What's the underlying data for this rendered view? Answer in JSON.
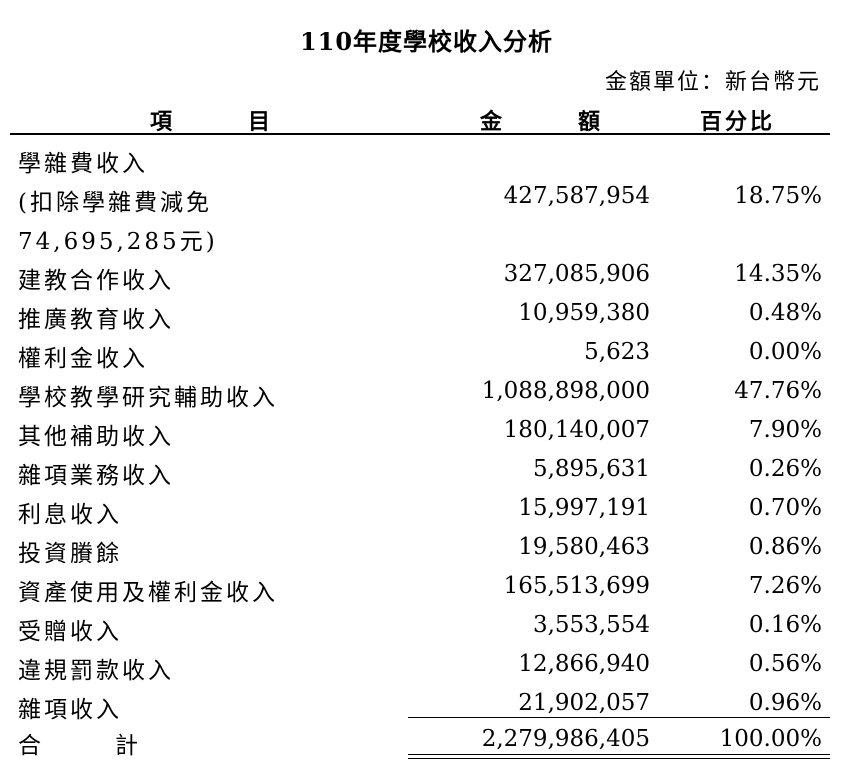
{
  "title": "110年度學校收入分析",
  "unit": "金額單位：新台幣元",
  "headers": {
    "item_chars": [
      "項",
      "目"
    ],
    "amount_chars": [
      "金",
      "額"
    ],
    "percent": "百分比"
  },
  "rows": [
    {
      "item_lines": [
        "學雜費收入",
        "(扣除學雜費減免",
        "74,695,285元)"
      ],
      "amount": "427,587,954",
      "percent": "18.75%"
    },
    {
      "item": "建教合作收入",
      "amount": "327,085,906",
      "percent": "14.35%"
    },
    {
      "item": "推廣教育收入",
      "amount": "10,959,380",
      "percent": "0.48%"
    },
    {
      "item": "權利金收入",
      "amount": "5,623",
      "percent": "0.00%"
    },
    {
      "item": "學校教學研究輔助收入",
      "amount": "1,088,898,000",
      "percent": "47.76%"
    },
    {
      "item": "其他補助收入",
      "amount": "180,140,007",
      "percent": "7.90%"
    },
    {
      "item": "雜項業務收入",
      "amount": "5,895,631",
      "percent": "0.26%"
    },
    {
      "item": "利息收入",
      "amount": "15,997,191",
      "percent": "0.70%"
    },
    {
      "item": "投資賸餘",
      "amount": "19,580,463",
      "percent": "0.86%"
    },
    {
      "item": "資產使用及權利金收入",
      "amount": "165,513,699",
      "percent": "7.26%"
    },
    {
      "item": "受贈收入",
      "amount": "3,553,554",
      "percent": "0.16%"
    },
    {
      "item": "違規罰款收入",
      "amount": "12,866,940",
      "percent": "0.56%"
    },
    {
      "item": "雜項收入",
      "amount": "21,902,057",
      "percent": "0.96%"
    }
  ],
  "total": {
    "label_chars": [
      "合",
      "計"
    ],
    "amount": "2,279,986,405",
    "percent": "100.00%"
  }
}
